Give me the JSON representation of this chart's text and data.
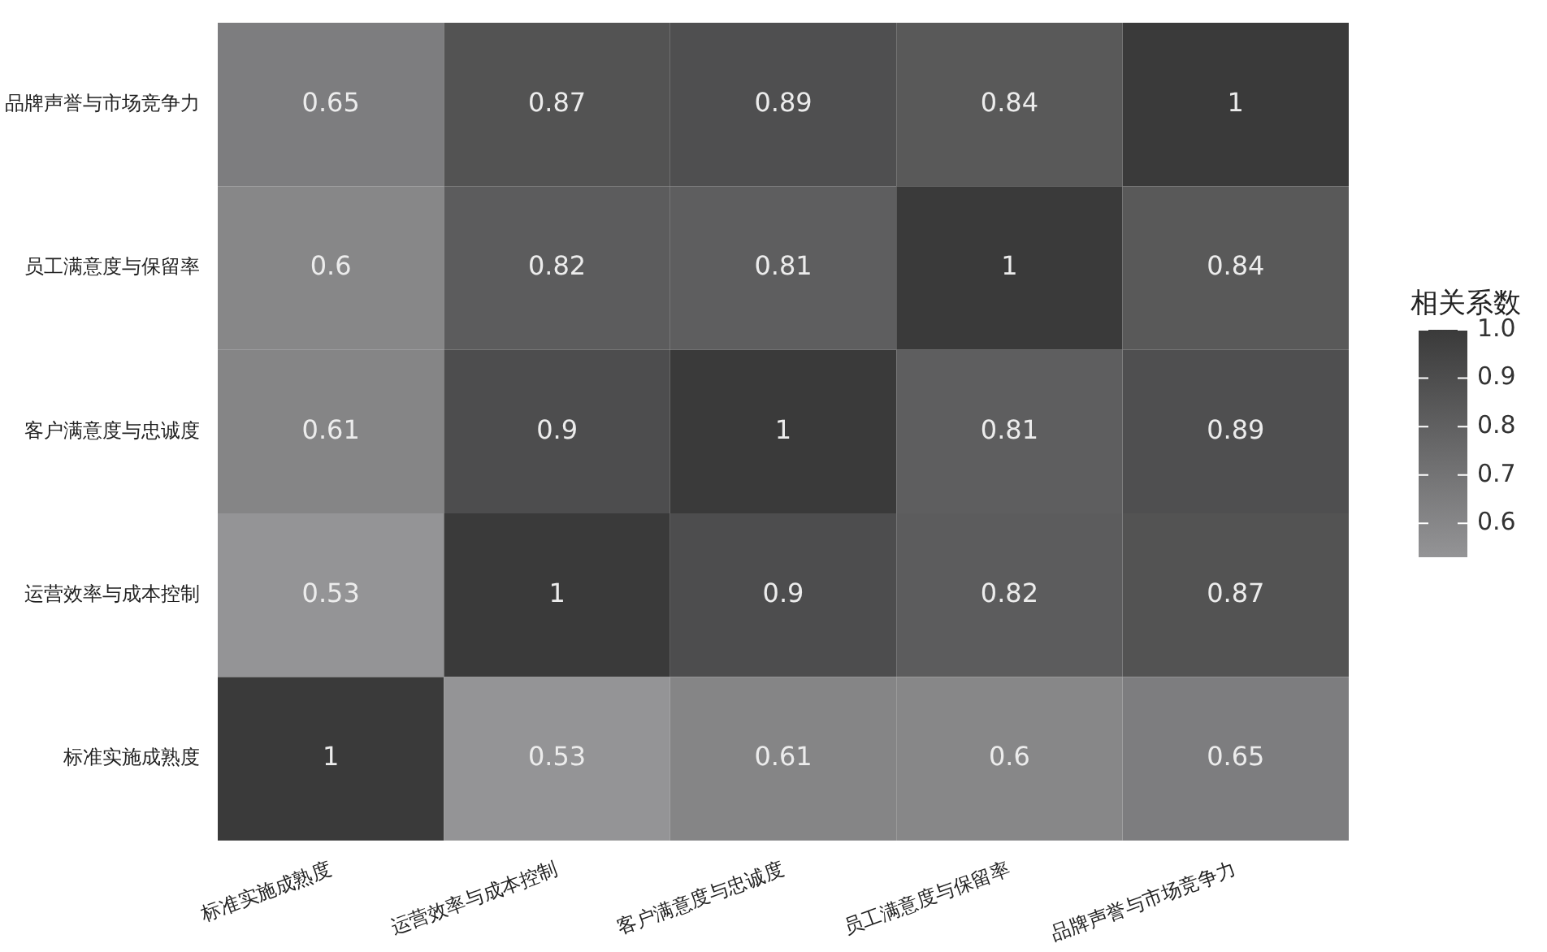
{
  "chart_data": {
    "type": "heatmap",
    "legend_title": "相关系数",
    "categories": [
      "标准实施成熟度",
      "运营效率与成本控制",
      "客户满意度与忠诚度",
      "员工满意度与保留率",
      "品牌声誉与市场竞争力"
    ],
    "y_categories": [
      "品牌声誉与市场竞争力",
      "员工满意度与保留率",
      "客户满意度与忠诚度",
      "运营效率与成本控制",
      "标准实施成熟度"
    ],
    "cells": [
      [
        0.65,
        0.87,
        0.89,
        0.84,
        1
      ],
      [
        0.6,
        0.82,
        0.81,
        1,
        0.84
      ],
      [
        0.61,
        0.9,
        1,
        0.81,
        0.89
      ],
      [
        0.53,
        1,
        0.9,
        0.82,
        0.87
      ],
      [
        1,
        0.53,
        0.61,
        0.6,
        0.65
      ]
    ],
    "clim": [
      0.53,
      1
    ],
    "cticks": [
      0.6,
      0.7,
      0.8,
      0.9,
      {
        "value": 1,
        "label": "1.0"
      }
    ],
    "colors": [
      "#949496",
      "#3a3a3a"
    ],
    "data_labels": true
  }
}
